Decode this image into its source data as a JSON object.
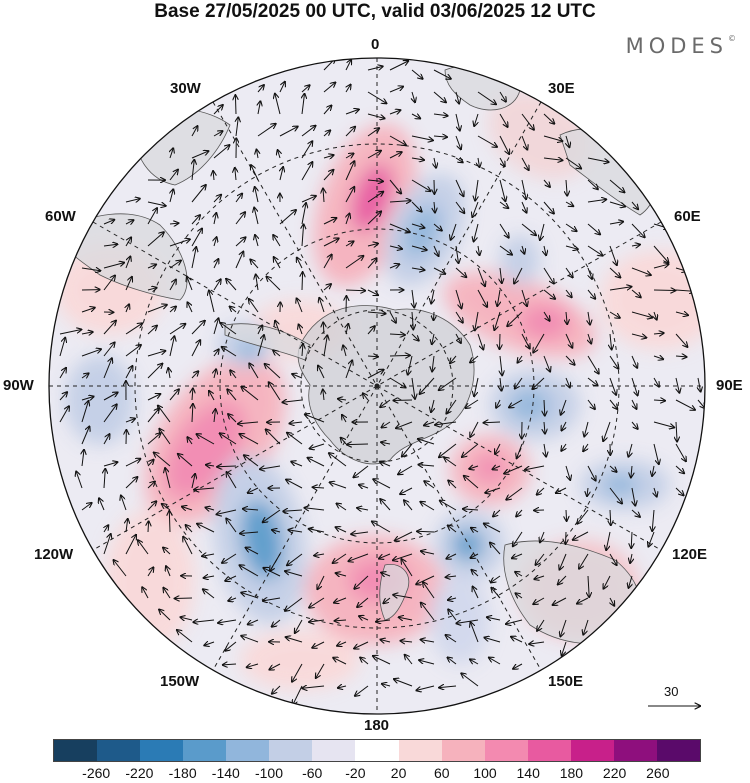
{
  "title": "Base 27/05/2025 00 UTC, valid 03/06/2025 12 UTC",
  "brand": "MODES",
  "brand_mark": "©",
  "map": {
    "projection": "polar-stereographic-south",
    "longitude_labels": {
      "top": "0",
      "top_right": "30E",
      "right_upper": "60E",
      "right": "90E",
      "right_lower": "120E",
      "bottom_right": "150E",
      "bottom": "180",
      "bottom_left": "150W",
      "left_lower": "120W",
      "left": "90W",
      "left_upper": "60W",
      "top_left": "30W"
    },
    "vector_scale": "30"
  },
  "colorbar": {
    "colors": [
      "#173f5f",
      "#1e5a8a",
      "#2b7bb5",
      "#5a9bcb",
      "#91b6dc",
      "#c3cfe6",
      "#e6e4f1",
      "#ffffff",
      "#f9d9d9",
      "#f6b2bd",
      "#f38ab0",
      "#e85aa0",
      "#c8208a",
      "#8e0f7d",
      "#5a0a6a"
    ],
    "tick_labels": [
      "-260",
      "-220",
      "-180",
      "-140",
      "-100",
      "-60",
      "-20",
      "20",
      "60",
      "100",
      "140",
      "180",
      "220",
      "260"
    ]
  }
}
